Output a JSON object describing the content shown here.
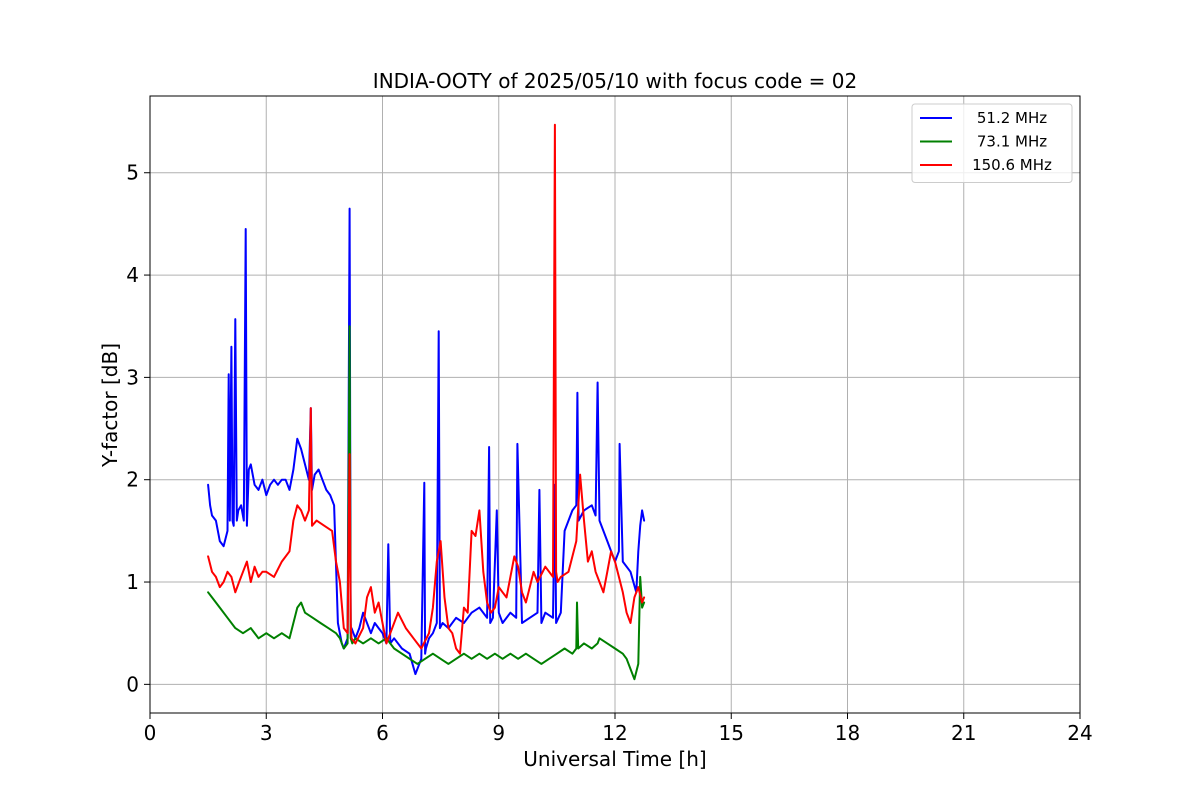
{
  "chart_data": {
    "type": "line",
    "title": "INDIA-OOTY of 2025/05/10 with focus code = 02",
    "xlabel": "Universal Time [h]",
    "ylabel": "Y-factor [dB]",
    "xlim": [
      0,
      24
    ],
    "ylim": [
      -0.28,
      5.75
    ],
    "xticks": [
      0,
      3,
      6,
      9,
      12,
      15,
      18,
      21,
      24
    ],
    "yticks": [
      0,
      1,
      2,
      3,
      4,
      5
    ],
    "grid": true,
    "legend_position": "top-right",
    "series": [
      {
        "name": "51.2 MHz",
        "color": "#0000ff",
        "x": [
          1.5,
          1.55,
          1.6,
          1.7,
          1.8,
          1.9,
          2.0,
          2.03,
          2.06,
          2.1,
          2.13,
          2.16,
          2.2,
          2.24,
          2.28,
          2.35,
          2.42,
          2.47,
          2.5,
          2.55,
          2.6,
          2.7,
          2.8,
          2.9,
          3.0,
          3.1,
          3.2,
          3.3,
          3.4,
          3.5,
          3.6,
          3.7,
          3.8,
          3.9,
          4.0,
          4.1,
          4.15,
          4.18,
          4.25,
          4.35,
          4.45,
          4.55,
          4.65,
          4.75,
          4.85,
          4.95,
          5.0,
          5.05,
          5.1,
          5.15,
          5.18,
          5.2,
          5.25,
          5.3,
          5.4,
          5.5,
          5.6,
          5.7,
          5.8,
          5.9,
          6.0,
          6.1,
          6.15,
          6.2,
          6.3,
          6.5,
          6.7,
          6.85,
          7.0,
          7.08,
          7.1,
          7.12,
          7.2,
          7.3,
          7.4,
          7.45,
          7.48,
          7.55,
          7.7,
          7.9,
          8.1,
          8.3,
          8.5,
          8.7,
          8.75,
          8.78,
          8.85,
          8.95,
          9.0,
          9.1,
          9.3,
          9.45,
          9.48,
          9.6,
          9.8,
          10.0,
          10.05,
          10.1,
          10.2,
          10.4,
          10.45,
          10.48,
          10.6,
          10.7,
          10.8,
          10.9,
          11.0,
          11.03,
          11.06,
          11.2,
          11.4,
          11.5,
          11.55,
          11.6,
          11.8,
          12.0,
          12.1,
          12.12,
          12.2,
          12.4,
          12.55,
          12.6,
          12.65,
          12.7,
          12.75
        ],
        "y": [
          1.95,
          1.75,
          1.65,
          1.6,
          1.4,
          1.35,
          1.5,
          3.03,
          1.6,
          3.3,
          1.6,
          1.55,
          3.57,
          1.6,
          1.7,
          1.75,
          1.6,
          4.45,
          1.55,
          2.1,
          2.15,
          1.95,
          1.9,
          2.0,
          1.85,
          1.95,
          2.0,
          1.95,
          2.0,
          2.0,
          1.9,
          2.1,
          2.4,
          2.3,
          2.15,
          2.0,
          2.7,
          1.9,
          2.05,
          2.1,
          2.0,
          1.9,
          1.85,
          1.75,
          0.6,
          0.4,
          0.35,
          0.4,
          0.45,
          4.65,
          0.5,
          0.55,
          0.5,
          0.45,
          0.55,
          0.7,
          0.6,
          0.5,
          0.6,
          0.55,
          0.5,
          0.4,
          1.37,
          0.4,
          0.45,
          0.35,
          0.3,
          0.1,
          0.25,
          1.97,
          0.3,
          0.35,
          0.45,
          0.5,
          0.6,
          3.45,
          0.55,
          0.6,
          0.55,
          0.65,
          0.6,
          0.7,
          0.75,
          0.65,
          2.32,
          0.6,
          0.65,
          1.7,
          0.7,
          0.6,
          0.7,
          0.65,
          2.35,
          0.6,
          0.65,
          0.7,
          1.9,
          0.6,
          0.7,
          0.65,
          1.95,
          0.6,
          0.7,
          1.5,
          1.6,
          1.7,
          1.75,
          2.85,
          1.6,
          1.7,
          1.75,
          1.65,
          2.95,
          1.6,
          1.4,
          1.2,
          1.3,
          2.35,
          1.2,
          1.1,
          0.9,
          1.3,
          1.55,
          1.7,
          1.6
        ]
      },
      {
        "name": "73.1 MHz",
        "color": "#008000",
        "x": [
          1.5,
          1.6,
          1.8,
          2.0,
          2.2,
          2.4,
          2.6,
          2.8,
          3.0,
          3.2,
          3.4,
          3.6,
          3.8,
          3.9,
          4.0,
          4.2,
          4.4,
          4.6,
          4.8,
          4.9,
          5.0,
          5.1,
          5.15,
          5.18,
          5.22,
          5.3,
          5.5,
          5.7,
          5.9,
          6.1,
          6.3,
          6.5,
          6.7,
          6.9,
          7.1,
          7.3,
          7.5,
          7.7,
          7.9,
          8.1,
          8.3,
          8.5,
          8.7,
          8.9,
          9.1,
          9.3,
          9.5,
          9.7,
          9.9,
          10.1,
          10.3,
          10.5,
          10.7,
          10.9,
          11.0,
          11.02,
          11.05,
          11.2,
          11.4,
          11.55,
          11.6,
          11.8,
          12.0,
          12.2,
          12.3,
          12.4,
          12.5,
          12.6,
          12.65,
          12.7,
          12.75
        ],
        "y": [
          0.9,
          0.85,
          0.75,
          0.65,
          0.55,
          0.5,
          0.55,
          0.45,
          0.5,
          0.45,
          0.5,
          0.45,
          0.75,
          0.8,
          0.7,
          0.65,
          0.6,
          0.55,
          0.5,
          0.45,
          0.35,
          0.4,
          3.5,
          0.45,
          0.4,
          0.45,
          0.4,
          0.45,
          0.4,
          0.45,
          0.35,
          0.3,
          0.25,
          0.2,
          0.25,
          0.3,
          0.25,
          0.2,
          0.25,
          0.3,
          0.25,
          0.3,
          0.25,
          0.3,
          0.25,
          0.3,
          0.25,
          0.3,
          0.25,
          0.2,
          0.25,
          0.3,
          0.35,
          0.3,
          0.35,
          0.8,
          0.35,
          0.4,
          0.35,
          0.4,
          0.45,
          0.4,
          0.35,
          0.3,
          0.25,
          0.15,
          0.05,
          0.2,
          1.05,
          0.75,
          0.8
        ]
      },
      {
        "name": "150.6 MHz",
        "color": "#ff0000",
        "x": [
          1.5,
          1.6,
          1.7,
          1.8,
          1.9,
          2.0,
          2.1,
          2.2,
          2.3,
          2.4,
          2.5,
          2.6,
          2.7,
          2.8,
          2.9,
          3.0,
          3.2,
          3.4,
          3.6,
          3.7,
          3.8,
          3.9,
          4.0,
          4.1,
          4.15,
          4.18,
          4.3,
          4.5,
          4.7,
          4.8,
          4.9,
          5.0,
          5.1,
          5.15,
          5.18,
          5.2,
          5.3,
          5.5,
          5.6,
          5.7,
          5.8,
          5.9,
          6.0,
          6.1,
          6.2,
          6.4,
          6.6,
          6.8,
          7.0,
          7.2,
          7.3,
          7.4,
          7.5,
          7.6,
          7.7,
          7.8,
          7.9,
          8.0,
          8.1,
          8.2,
          8.3,
          8.4,
          8.5,
          8.6,
          8.7,
          8.8,
          8.9,
          9.0,
          9.1,
          9.2,
          9.3,
          9.4,
          9.5,
          9.6,
          9.7,
          9.8,
          9.9,
          10.0,
          10.2,
          10.4,
          10.45,
          10.48,
          10.52,
          10.6,
          10.8,
          11.0,
          11.1,
          11.2,
          11.3,
          11.4,
          11.5,
          11.6,
          11.7,
          11.8,
          11.9,
          12.0,
          12.1,
          12.2,
          12.3,
          12.4,
          12.5,
          12.6,
          12.7,
          12.75
        ],
        "y": [
          1.25,
          1.1,
          1.05,
          0.95,
          1.0,
          1.1,
          1.05,
          0.9,
          1.0,
          1.1,
          1.2,
          1.0,
          1.15,
          1.05,
          1.1,
          1.1,
          1.05,
          1.2,
          1.3,
          1.6,
          1.75,
          1.7,
          1.6,
          1.7,
          2.7,
          1.55,
          1.6,
          1.55,
          1.5,
          1.2,
          1.0,
          0.55,
          0.5,
          2.25,
          0.6,
          0.45,
          0.4,
          0.55,
          0.85,
          0.95,
          0.7,
          0.8,
          0.6,
          0.4,
          0.5,
          0.7,
          0.55,
          0.45,
          0.35,
          0.5,
          0.75,
          1.2,
          1.4,
          0.85,
          0.55,
          0.5,
          0.35,
          0.3,
          0.75,
          0.7,
          1.5,
          1.45,
          1.7,
          1.1,
          0.8,
          0.7,
          0.75,
          0.95,
          0.9,
          0.85,
          1.05,
          1.25,
          1.15,
          0.9,
          0.8,
          0.95,
          1.1,
          1.0,
          1.15,
          1.05,
          5.47,
          1.1,
          1.0,
          1.05,
          1.1,
          1.4,
          2.05,
          1.6,
          1.2,
          1.3,
          1.1,
          1.0,
          0.9,
          1.1,
          1.3,
          1.2,
          1.05,
          0.9,
          0.7,
          0.6,
          0.85,
          0.95,
          0.8,
          0.85
        ]
      }
    ]
  }
}
